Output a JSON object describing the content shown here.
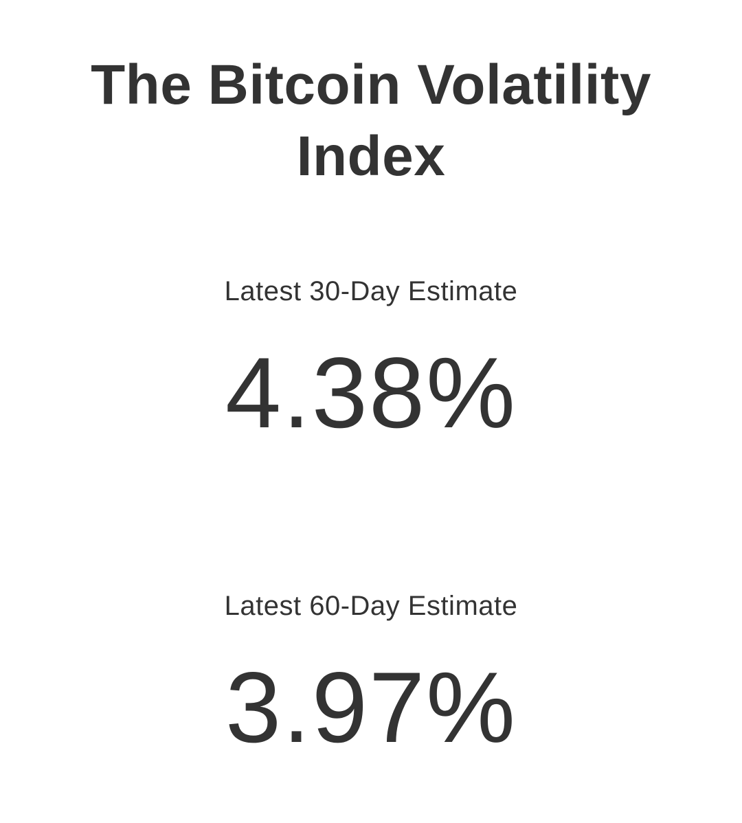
{
  "title": "The Bitcoin Volatility Index",
  "estimates": [
    {
      "label": "Latest 30-Day Estimate",
      "value": "4.38%"
    },
    {
      "label": "Latest 60-Day Estimate",
      "value": "3.97%"
    }
  ]
}
